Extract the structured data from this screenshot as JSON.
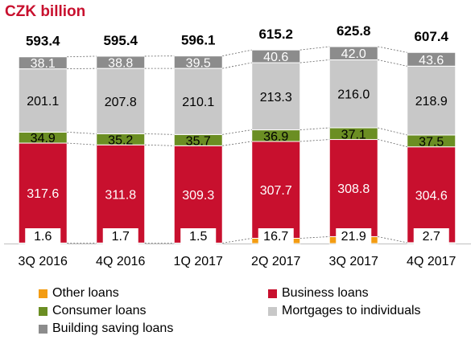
{
  "chart_data": {
    "type": "bar",
    "stacked": true,
    "unit_label": "CZK billion",
    "categories": [
      "3Q 2016",
      "4Q 2016",
      "1Q 2017",
      "2Q 2017",
      "3Q 2017",
      "4Q 2017"
    ],
    "totals": [
      "593.4",
      "595.4",
      "596.1",
      "615.2",
      "625.8",
      "607.4"
    ],
    "series": [
      {
        "name": "Other loans",
        "values": [
          1.6,
          1.7,
          1.5,
          16.7,
          21.9,
          2.7
        ],
        "color": "#f39c12"
      },
      {
        "name": "Business loans",
        "values": [
          317.6,
          311.8,
          309.3,
          307.7,
          308.8,
          304.6
        ],
        "color": "#c8102e"
      },
      {
        "name": "Consumer loans",
        "values": [
          34.9,
          35.2,
          35.7,
          36.9,
          37.1,
          37.5
        ],
        "color": "#6b8e23"
      },
      {
        "name": "Mortgages to individuals",
        "values": [
          201.1,
          207.8,
          210.1,
          213.3,
          216.0,
          218.9
        ],
        "color": "#c8c8c8"
      },
      {
        "name": "Building saving loans",
        "values": [
          38.1,
          38.8,
          39.5,
          40.6,
          42.0,
          43.6
        ],
        "color": "#8c8c8c"
      }
    ],
    "legend_position": "bottom",
    "grid": false
  }
}
